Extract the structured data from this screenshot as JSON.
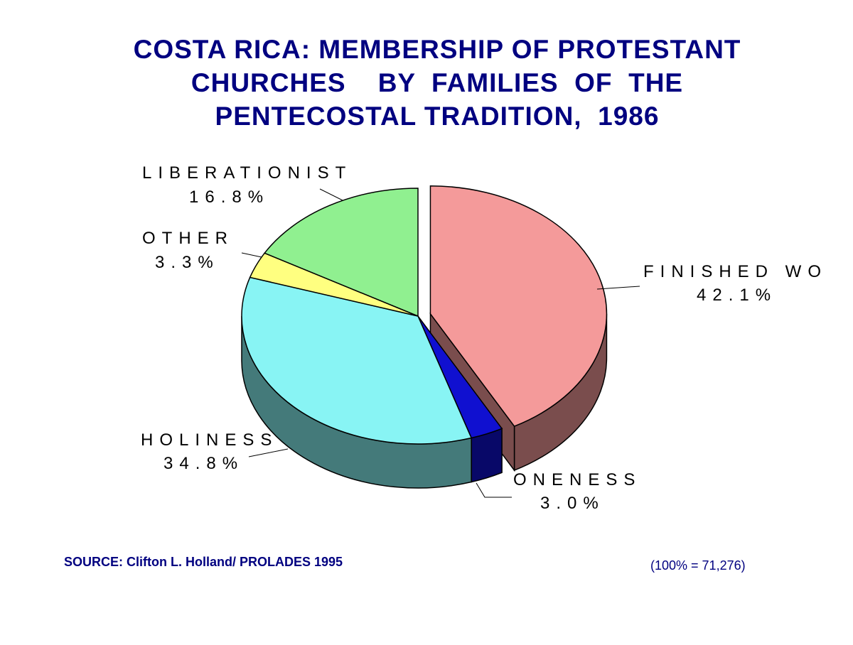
{
  "chart_data": {
    "type": "pie",
    "title": [
      "COSTA RICA:  MEMBERSHIP OF PROTESTANT",
      "CHURCHES    BY  FAMILIES  OF  THE",
      "PENTECOSTAL TRADITION,  1986"
    ],
    "categories": [
      "FINISHED WO",
      "ONENESS",
      "HOLINESS",
      "OTHER",
      "LIBERATIONIST"
    ],
    "values": [
      42.1,
      3.0,
      34.8,
      3.3,
      16.8
    ],
    "value_labels": [
      "42.1%",
      "3.0%",
      "34.8%",
      "3.3%",
      "16.8%"
    ],
    "colors": [
      "#f49a9a",
      "#1010d0",
      "#88f4f4",
      "#ffff80",
      "#90f090"
    ],
    "source": "SOURCE: Clifton L. Holland/ PROLADES 1995",
    "note": "(100% = 71,276)"
  }
}
